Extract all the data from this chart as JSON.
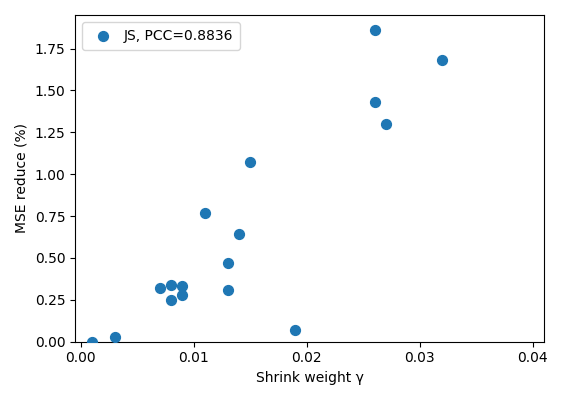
{
  "x": [
    0.001,
    0.003,
    0.007,
    0.008,
    0.008,
    0.009,
    0.009,
    0.011,
    0.013,
    0.013,
    0.014,
    0.015,
    0.019,
    0.026,
    0.026,
    0.027,
    0.032
  ],
  "y": [
    0.0,
    0.03,
    0.32,
    0.34,
    0.25,
    0.33,
    0.28,
    0.77,
    0.47,
    0.31,
    0.64,
    1.07,
    0.07,
    1.43,
    1.86,
    1.3,
    1.68
  ],
  "color": "#1f77b4",
  "marker": "o",
  "marker_size": 50,
  "legend_label": "JS, PCC=0.8836",
  "xlabel": "Shrink weight γ",
  "ylabel": "MSE reduce (%)",
  "xlim": [
    -0.0005,
    0.041
  ],
  "ylim": [
    0.0,
    1.95
  ],
  "xticks": [
    0.0,
    0.01,
    0.02,
    0.03,
    0.04
  ],
  "yticks": [
    0.0,
    0.25,
    0.5,
    0.75,
    1.0,
    1.25,
    1.5,
    1.75
  ]
}
